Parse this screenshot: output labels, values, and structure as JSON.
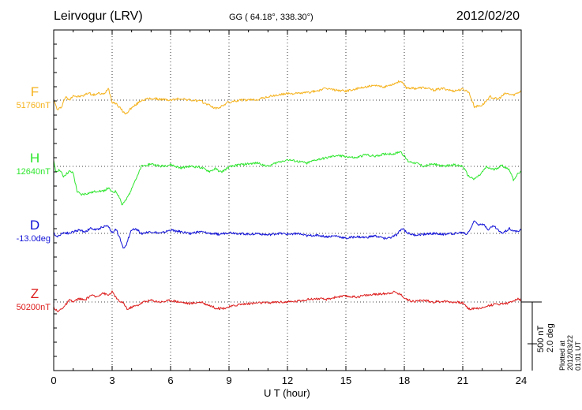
{
  "header": {
    "station": "Leirvogur (LRV)",
    "coords": "GG ( 64.18°, 338.30°)",
    "date": "2012/02/20"
  },
  "footer": {
    "plotted": "Plotted at 2012/03/22 01:01 UT",
    "scale_nt": "500 nT",
    "scale_deg": "2.0 deg"
  },
  "chart_data": {
    "type": "line",
    "xlabel": "U T (hour)",
    "xlim": [
      0,
      24
    ],
    "xticks": [
      0,
      3,
      6,
      9,
      12,
      15,
      18,
      21,
      24
    ],
    "grid": "dotted vertical every 3 h, dotted baseline per component",
    "scale_bar_nt": 500,
    "series": [
      {
        "name": "F",
        "baseline": "51760nT",
        "color": "#f5b21c",
        "x": [
          0,
          0.2,
          0.4,
          0.6,
          0.8,
          1.0,
          1.2,
          1.5,
          1.8,
          2.0,
          2.3,
          2.6,
          2.8,
          3.0,
          3.2,
          3.5,
          3.7,
          3.9,
          4.2,
          4.5,
          5.0,
          5.5,
          6.0,
          6.5,
          7.0,
          7.5,
          8.0,
          8.3,
          8.6,
          8.9,
          9.2,
          9.5,
          10,
          10.5,
          11,
          11.5,
          12,
          12.5,
          13,
          13.5,
          14,
          14.5,
          15,
          15.5,
          16,
          16.5,
          17,
          17.5,
          17.8,
          18.1,
          18.5,
          19,
          19.5,
          20,
          20.5,
          21,
          21.3,
          21.6,
          22,
          22.4,
          22.8,
          23.2,
          23.6,
          24
        ],
        "values": [
          0,
          -120,
          -80,
          40,
          0,
          60,
          40,
          50,
          90,
          60,
          80,
          70,
          150,
          -20,
          -40,
          -120,
          -170,
          -110,
          -60,
          0,
          20,
          10,
          0,
          20,
          0,
          -10,
          -60,
          -100,
          -80,
          -30,
          -20,
          0,
          0,
          10,
          40,
          60,
          80,
          80,
          90,
          110,
          140,
          120,
          110,
          130,
          160,
          170,
          160,
          200,
          230,
          150,
          140,
          150,
          120,
          140,
          110,
          130,
          100,
          -80,
          -60,
          40,
          10,
          80,
          60,
          110
        ]
      },
      {
        "name": "H",
        "baseline": "12640nT",
        "color": "#2ee62e",
        "x": [
          0,
          0.1,
          0.3,
          0.5,
          0.8,
          1.0,
          1.2,
          1.4,
          1.6,
          1.8,
          2.0,
          2.3,
          2.5,
          2.8,
          3.0,
          3.2,
          3.4,
          3.5,
          3.7,
          3.9,
          4.1,
          4.3,
          4.5,
          5,
          5.5,
          6,
          6.5,
          7,
          7.5,
          8,
          8.3,
          8.6,
          9,
          9.5,
          10,
          10.5,
          11,
          11.5,
          12,
          12.5,
          13,
          13.5,
          14,
          14.5,
          15,
          15.5,
          16,
          16.5,
          17,
          17.5,
          17.8,
          18.2,
          18.6,
          19,
          19.5,
          20,
          20.5,
          21,
          21.3,
          21.6,
          21.9,
          22.2,
          22.6,
          23,
          23.4,
          23.6,
          23.8,
          24
        ],
        "values": [
          60,
          -60,
          -40,
          -120,
          -60,
          -80,
          -300,
          -340,
          -330,
          -320,
          -310,
          -290,
          -300,
          -260,
          -310,
          -300,
          -380,
          -460,
          -410,
          -320,
          -200,
          -120,
          0,
          30,
          0,
          20,
          -20,
          0,
          -10,
          -60,
          -30,
          -70,
          -10,
          20,
          30,
          40,
          0,
          50,
          80,
          60,
          40,
          80,
          100,
          130,
          120,
          100,
          140,
          120,
          150,
          150,
          180,
          60,
          40,
          0,
          30,
          0,
          20,
          0,
          -120,
          -150,
          -100,
          -10,
          -40,
          10,
          -40,
          -160,
          -100,
          -60
        ]
      },
      {
        "name": "D",
        "baseline": "-13.0deg",
        "color": "#1212d8",
        "x": [
          0,
          0.2,
          0.4,
          0.6,
          0.8,
          1.0,
          1.3,
          1.6,
          1.9,
          2.2,
          2.5,
          2.8,
          3.0,
          3.2,
          3.4,
          3.5,
          3.6,
          3.7,
          3.8,
          4.0,
          4.2,
          4.5,
          5,
          5.5,
          6,
          6.5,
          7,
          7.5,
          8,
          8.5,
          9,
          9.5,
          10,
          10.5,
          11,
          11.5,
          12,
          12.5,
          13,
          13.5,
          14,
          14.5,
          15,
          15.5,
          16,
          16.5,
          17,
          17.3,
          17.6,
          17.9,
          18.2,
          18.5,
          19,
          19.5,
          20,
          20.5,
          21,
          21.2,
          21.4,
          21.6,
          21.8,
          22,
          22.3,
          22.6,
          23,
          23.4,
          23.7,
          24
        ],
        "values": [
          0,
          -40,
          0,
          10,
          0,
          20,
          40,
          20,
          60,
          40,
          80,
          90,
          10,
          50,
          -60,
          -140,
          -180,
          -150,
          -80,
          40,
          60,
          0,
          20,
          0,
          40,
          20,
          0,
          20,
          0,
          -10,
          10,
          0,
          -10,
          0,
          -20,
          0,
          -10,
          0,
          -30,
          -20,
          -40,
          -30,
          -60,
          -40,
          -50,
          -30,
          -60,
          -50,
          -20,
          60,
          0,
          -20,
          -10,
          0,
          -10,
          0,
          10,
          -10,
          60,
          150,
          110,
          120,
          50,
          90,
          0,
          60,
          20,
          40
        ]
      },
      {
        "name": "Z",
        "baseline": "50200nT",
        "color": "#dd1c1c",
        "x": [
          0,
          0.2,
          0.4,
          0.6,
          0.8,
          1.0,
          1.3,
          1.6,
          1.9,
          2.2,
          2.5,
          2.8,
          3.0,
          3.3,
          3.6,
          3.8,
          4.0,
          4.3,
          4.6,
          5,
          5.5,
          6,
          6.5,
          7,
          7.5,
          8,
          8.3,
          8.6,
          9,
          9.5,
          10,
          10.5,
          11,
          11.5,
          12,
          12.5,
          13,
          13.5,
          14,
          14.5,
          15,
          15.5,
          16,
          16.5,
          17,
          17.5,
          17.8,
          18.2,
          18.6,
          19,
          19.5,
          20,
          20.5,
          21,
          21.2,
          21.4,
          21.6,
          21.9,
          22.2,
          22.6,
          23,
          23.4,
          23.8,
          24
        ],
        "values": [
          -60,
          -120,
          -80,
          -40,
          20,
          0,
          40,
          20,
          80,
          60,
          110,
          80,
          120,
          20,
          -20,
          -90,
          -60,
          -40,
          0,
          20,
          0,
          20,
          0,
          -20,
          0,
          -40,
          -70,
          -80,
          -60,
          -30,
          -20,
          -10,
          -10,
          0,
          0,
          10,
          30,
          40,
          30,
          60,
          70,
          60,
          80,
          90,
          100,
          120,
          90,
          20,
          10,
          20,
          0,
          10,
          0,
          -10,
          -60,
          -90,
          -70,
          -80,
          -50,
          -30,
          -20,
          -10,
          40,
          20
        ]
      }
    ]
  }
}
